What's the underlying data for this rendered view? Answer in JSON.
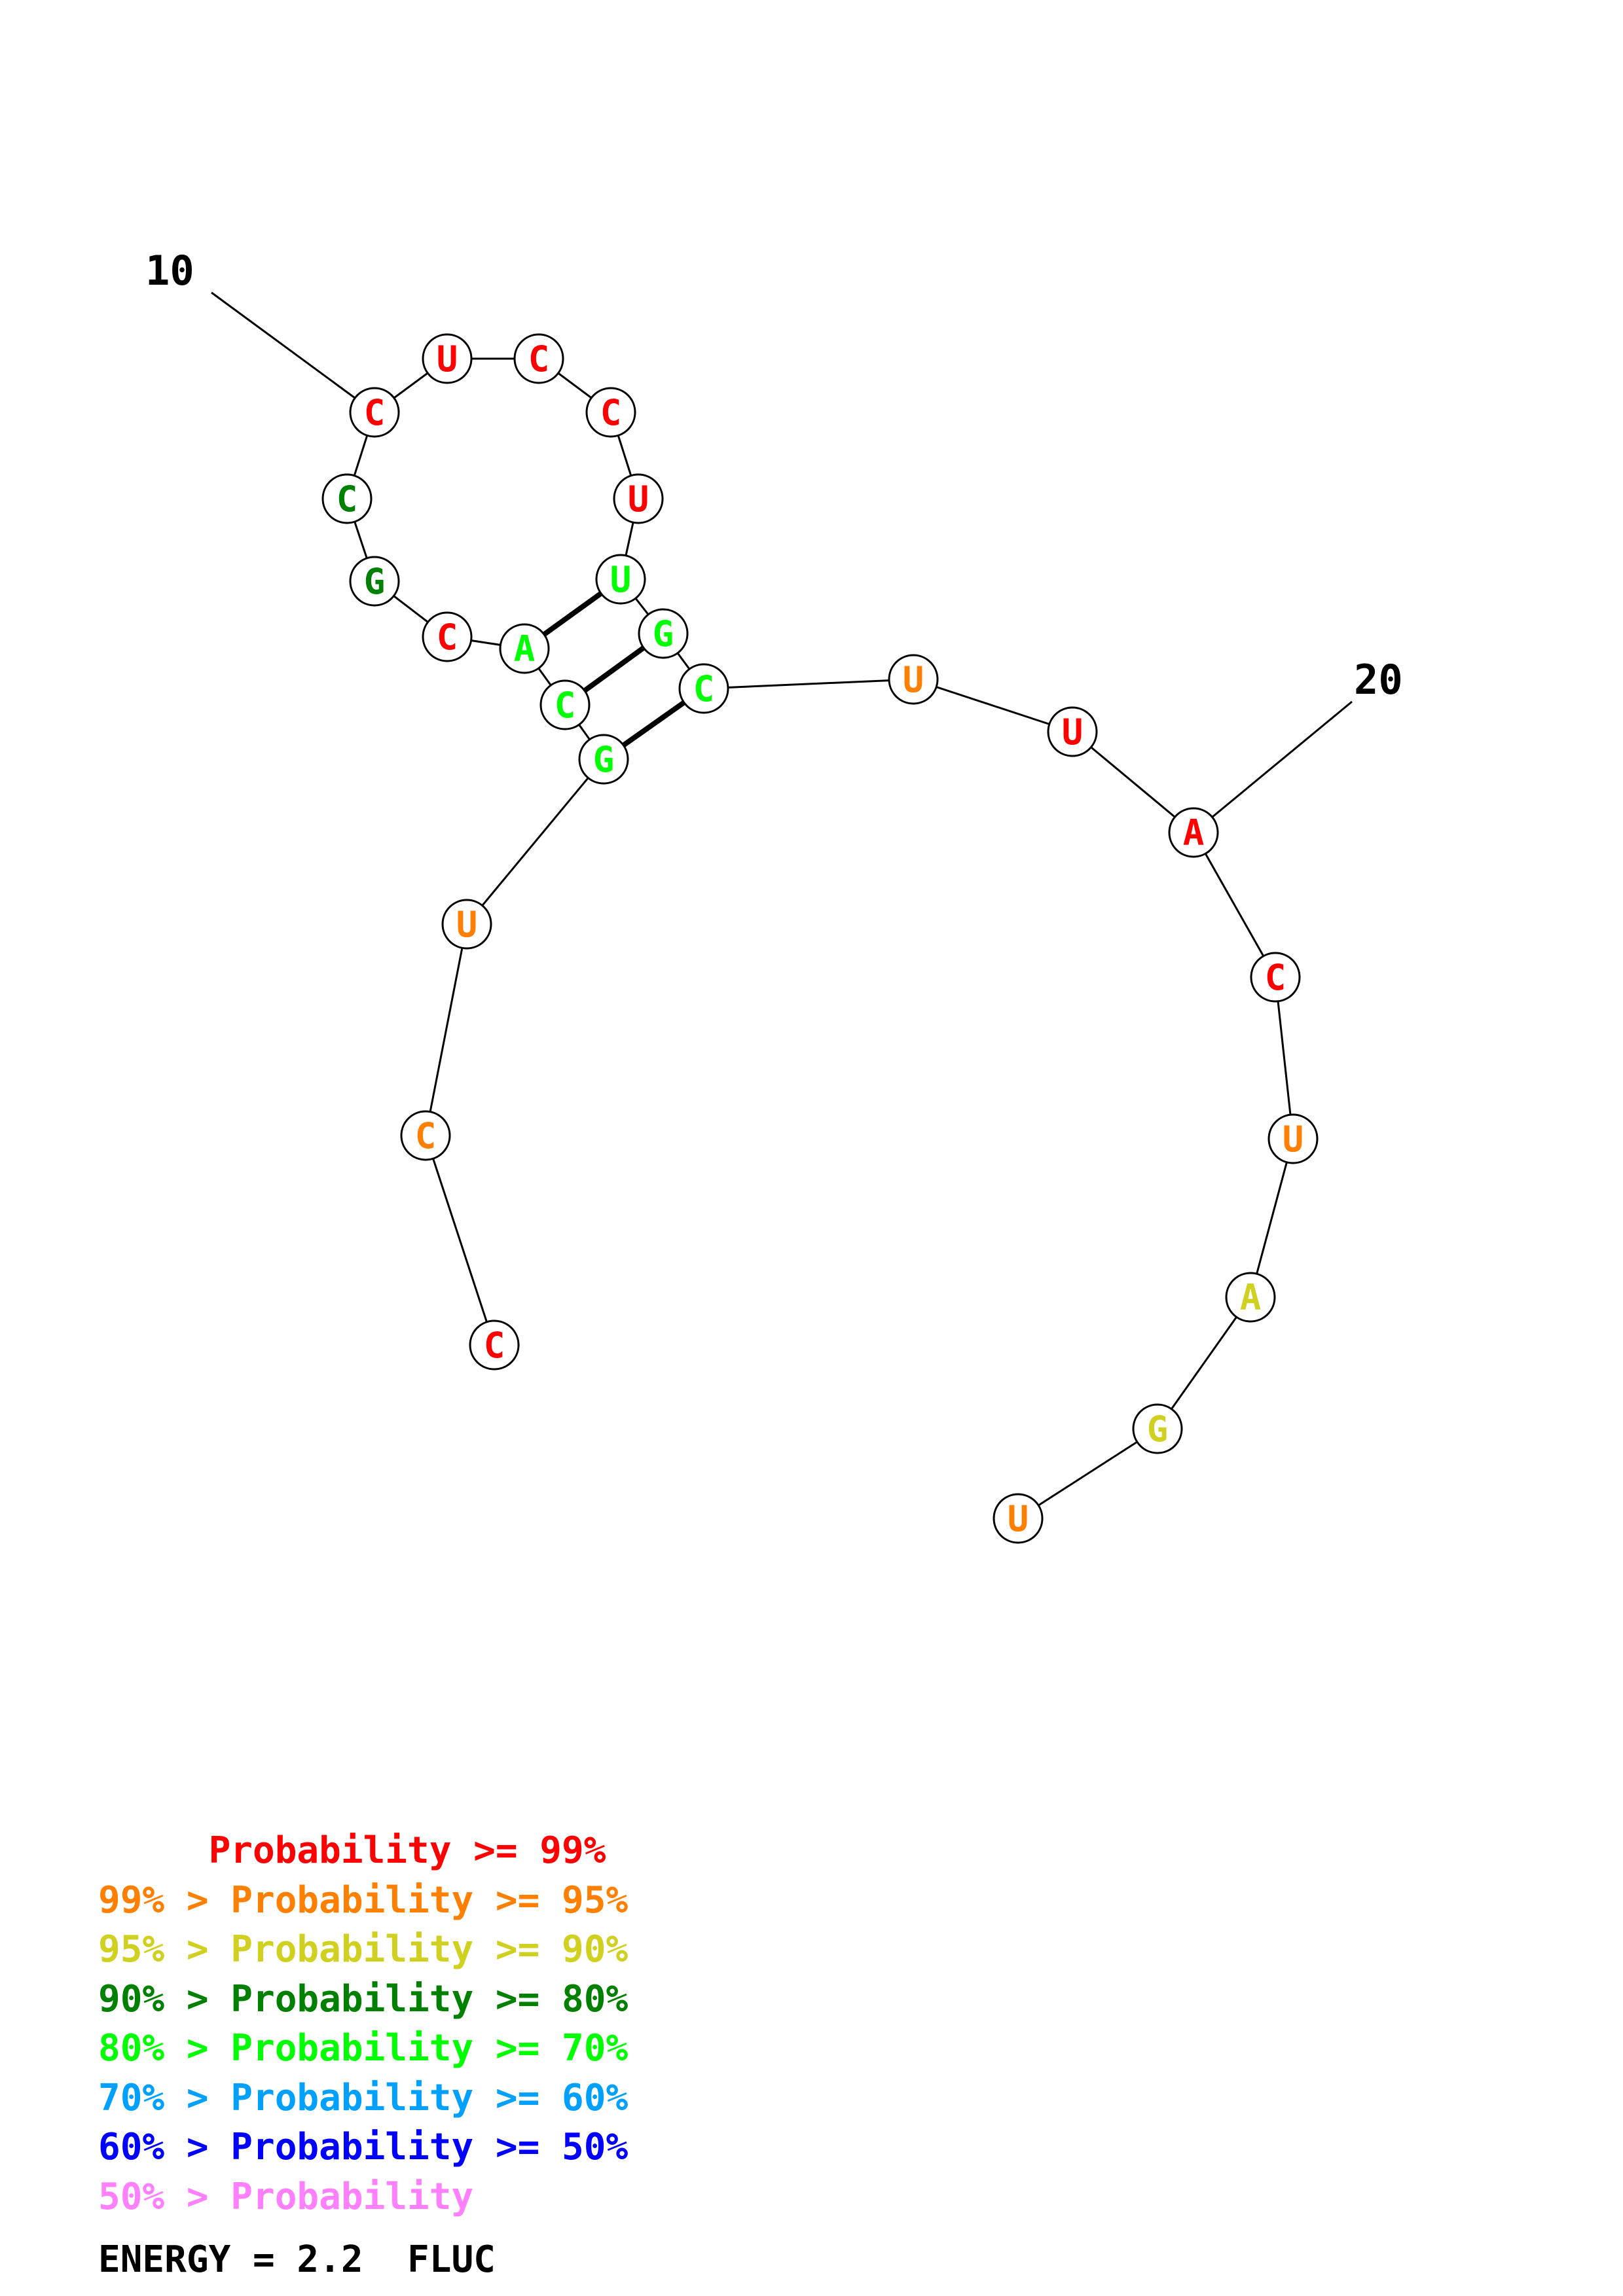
{
  "colors": {
    "p99": "#ff0000",
    "p95": "#ff8000",
    "p90": "#d0d020",
    "p80": "#008000",
    "p70": "#00ff00",
    "p60": "#00a0ff",
    "p50": "#0000ff",
    "plow": "#ff80ff"
  },
  "sequence": [
    {
      "n": 1,
      "base": "C",
      "color": "p99"
    },
    {
      "n": 2,
      "base": "C",
      "color": "p95"
    },
    {
      "n": 3,
      "base": "U",
      "color": "p95"
    },
    {
      "n": 4,
      "base": "G",
      "color": "p70"
    },
    {
      "n": 5,
      "base": "C",
      "color": "p70"
    },
    {
      "n": 6,
      "base": "A",
      "color": "p70"
    },
    {
      "n": 7,
      "base": "C",
      "color": "p99"
    },
    {
      "n": 8,
      "base": "G",
      "color": "p80"
    },
    {
      "n": 9,
      "base": "C",
      "color": "p80"
    },
    {
      "n": 10,
      "base": "C",
      "color": "p99"
    },
    {
      "n": 11,
      "base": "U",
      "color": "p99"
    },
    {
      "n": 12,
      "base": "C",
      "color": "p99"
    },
    {
      "n": 13,
      "base": "C",
      "color": "p99"
    },
    {
      "n": 14,
      "base": "U",
      "color": "p99"
    },
    {
      "n": 15,
      "base": "U",
      "color": "p70"
    },
    {
      "n": 16,
      "base": "G",
      "color": "p70"
    },
    {
      "n": 17,
      "base": "C",
      "color": "p70"
    },
    {
      "n": 18,
      "base": "U",
      "color": "p95"
    },
    {
      "n": 19,
      "base": "U",
      "color": "p99"
    },
    {
      "n": 20,
      "base": "A",
      "color": "p99"
    },
    {
      "n": 21,
      "base": "C",
      "color": "p99"
    },
    {
      "n": 22,
      "base": "U",
      "color": "p95"
    },
    {
      "n": 23,
      "base": "A",
      "color": "p90"
    },
    {
      "n": 24,
      "base": "G",
      "color": "p90"
    },
    {
      "n": 25,
      "base": "U",
      "color": "p95"
    }
  ],
  "pairs": [
    [
      4,
      17
    ],
    [
      5,
      16
    ],
    [
      6,
      15
    ]
  ],
  "position_labels": [
    {
      "n": 10,
      "text": "10"
    },
    {
      "n": 20,
      "text": "20"
    }
  ],
  "legend": [
    {
      "text": "     Probability >= 99%",
      "color": "p99"
    },
    {
      "text": "99% > Probability >= 95%",
      "color": "p95"
    },
    {
      "text": "95% > Probability >= 90%",
      "color": "p90"
    },
    {
      "text": "90% > Probability >= 80%",
      "color": "p80"
    },
    {
      "text": "80% > Probability >= 70%",
      "color": "p70"
    },
    {
      "text": "70% > Probability >= 60%",
      "color": "p60"
    },
    {
      "text": "60% > Probability >= 50%",
      "color": "p50"
    },
    {
      "text": "50% > Probability",
      "color": "plow"
    }
  ],
  "energy_text": "ENERGY = 2.2  FLUC"
}
